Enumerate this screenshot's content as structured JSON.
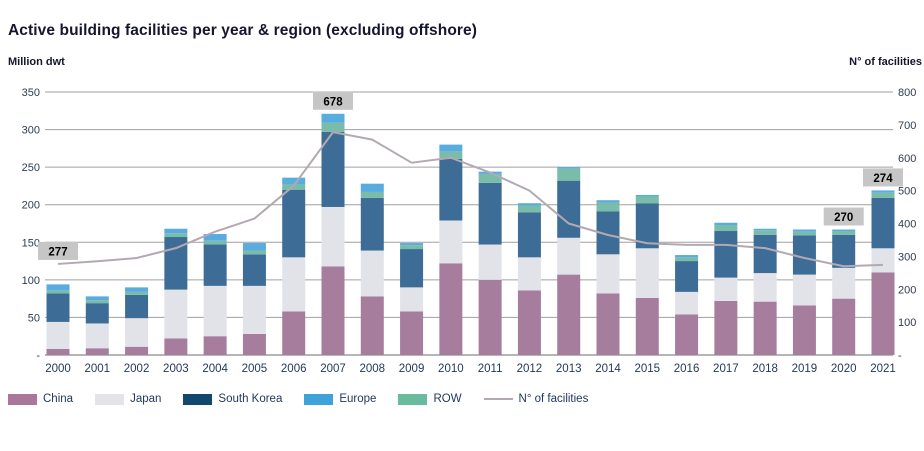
{
  "title": "Active building facilities per year & region (excluding offshore)",
  "colors": {
    "title": "#15152d",
    "tick_label": "#2f3c52",
    "year_label": "#22395c",
    "gridline": "#a0a0a0",
    "baseline": "#8a8a8a",
    "annotation_bg": "#c6c6c6",
    "annotation_text": "#000000"
  },
  "chart_data": {
    "type": "stacked-bar+line",
    "title": "Active building facilities per year & region (excluding offshore)",
    "unit_left": "Million dwt",
    "unit_right": "N° of facilities",
    "grid": true,
    "legend_position": "bottom",
    "categories": [
      "2000",
      "2001",
      "2002",
      "2003",
      "2004",
      "2005",
      "2006",
      "2007",
      "2008",
      "2009",
      "2010",
      "2011",
      "2012",
      "2013",
      "2014",
      "2015",
      "2016",
      "2017",
      "2018",
      "2019",
      "2020",
      "2021"
    ],
    "ylim_left": [
      0,
      350
    ],
    "yticks_left": [
      "350",
      "300",
      "250",
      "200",
      "150",
      "100",
      "50",
      "-"
    ],
    "ylim_right": [
      0,
      800
    ],
    "yticks_right": [
      "800",
      "700",
      "600",
      "500",
      "400",
      "300",
      "200",
      "100",
      "-"
    ],
    "stack_order_bottom_to_top": [
      "China",
      "Japan",
      "South Korea",
      "ROW",
      "Europe"
    ],
    "legend_order": [
      "China",
      "Japan",
      "South Korea",
      "Europe",
      "ROW"
    ],
    "series": [
      {
        "name": "China",
        "color": "#a67d9c",
        "legend_color": "#a8779a",
        "values": [
          8,
          9,
          11,
          22,
          25,
          28,
          58,
          118,
          78,
          58,
          122,
          100,
          86,
          107,
          82,
          76,
          54,
          72,
          71,
          66,
          75,
          110
        ]
      },
      {
        "name": "Japan",
        "color": "#e2e3e8",
        "legend_color": "#e3e3e8",
        "values": [
          36,
          33,
          38,
          65,
          67,
          64,
          72,
          79,
          61,
          32,
          57,
          47,
          44,
          49,
          52,
          66,
          30,
          31,
          38,
          41,
          41,
          32
        ]
      },
      {
        "name": "South Korea",
        "color": "#3d6d96",
        "legend_color": "#12486e",
        "values": [
          38,
          27,
          31,
          70,
          55,
          42,
          90,
          100,
          70,
          51,
          82,
          82,
          60,
          76,
          57,
          60,
          41,
          62,
          51,
          52,
          44,
          67
        ]
      },
      {
        "name": "ROW",
        "color": "#7abcaa",
        "legend_color": "#68bb9c",
        "values": [
          4,
          4,
          4,
          5,
          5,
          5,
          7,
          12,
          8,
          5,
          10,
          12,
          9,
          16,
          12,
          9,
          5,
          8,
          6,
          5,
          5,
          7
        ]
      },
      {
        "name": "Europe",
        "color": "#58ace0",
        "legend_color": "#3fa3da",
        "values": [
          8,
          5,
          6,
          6,
          9,
          10,
          9,
          12,
          11,
          3,
          9,
          3,
          3,
          2,
          3,
          2,
          3,
          3,
          2,
          3,
          2,
          3
        ]
      }
    ],
    "line": {
      "name": "N° of facilities",
      "color": "#b3a9b3",
      "values": [
        277,
        285,
        295,
        325,
        375,
        415,
        515,
        678,
        655,
        585,
        600,
        555,
        500,
        400,
        365,
        340,
        335,
        335,
        325,
        295,
        270,
        274
      ]
    },
    "annotations": [
      {
        "year": "2000",
        "text": "277"
      },
      {
        "year": "2007",
        "text": "678"
      },
      {
        "year": "2020",
        "text": "270"
      },
      {
        "year": "2021",
        "text": "274"
      }
    ]
  }
}
